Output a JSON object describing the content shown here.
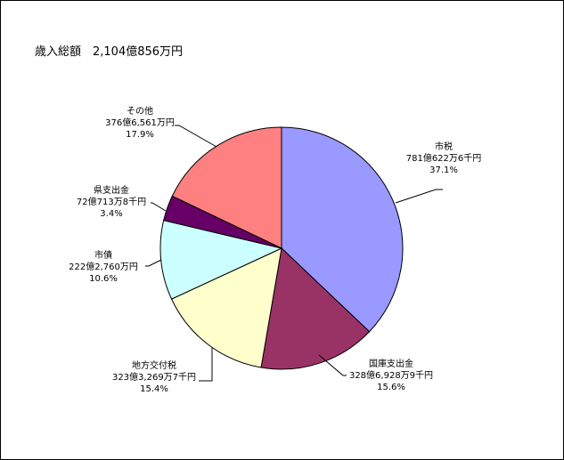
{
  "chart_data": {
    "type": "pie",
    "title": "歳入総額　2,104億856万円",
    "start": "12 o'clock",
    "direction": "clockwise",
    "slices": [
      {
        "name": "市税",
        "amount": "781億622万6千円",
        "percent_label": "37.1%",
        "value": 37.1,
        "color": "#9999FF"
      },
      {
        "name": "国庫支出金",
        "amount": "328億6,928万9千円",
        "percent_label": "15.6%",
        "value": 15.6,
        "color": "#993366"
      },
      {
        "name": "地方交付税",
        "amount": "323億3,269万7千円",
        "percent_label": "15.4%",
        "value": 15.4,
        "color": "#FFFFCC"
      },
      {
        "name": "市債",
        "amount": "222億2,760万円",
        "percent_label": "10.6%",
        "value": 10.6,
        "color": "#CCFFFF"
      },
      {
        "name": "県支出金",
        "amount": "72億713万8千円",
        "percent_label": "3.4%",
        "value": 3.4,
        "color": "#660066"
      },
      {
        "name": "その他",
        "amount": "376億6,561万円",
        "percent_label": "17.9%",
        "value": 17.9,
        "color": "#FF8080"
      }
    ]
  }
}
